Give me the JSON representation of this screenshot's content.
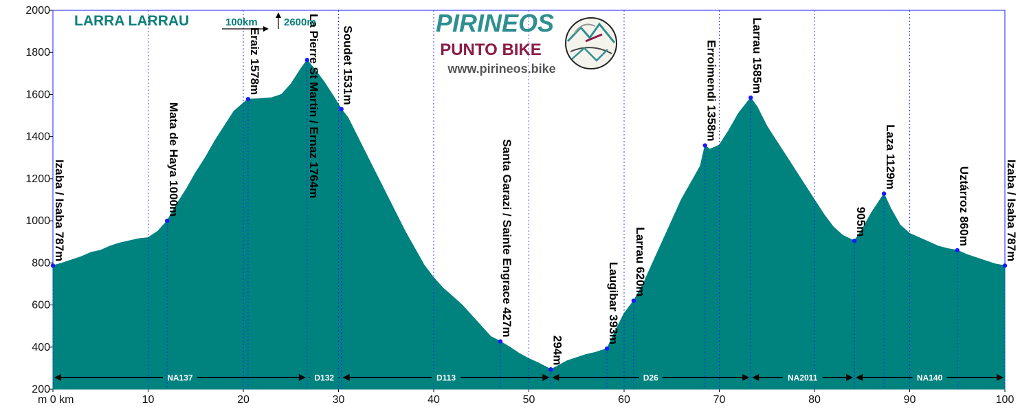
{
  "title": "LARRA LARRAU",
  "scale": {
    "horizontal": "100km",
    "vertical": "2600m"
  },
  "branding": {
    "line1": "PIRINEOS",
    "line2": "PUNTO BIKE",
    "url": "www.pirineos.bike"
  },
  "colors": {
    "fill": "#00827f",
    "title": "#0b7f7a",
    "brand_teal": "#2f8f91",
    "brand_maroon": "#8b1c46",
    "marker": "#1a1aff",
    "frame": "#1a1aff"
  },
  "chart_data": {
    "type": "area",
    "xlabel": "m 0 km",
    "xlim": [
      0,
      100
    ],
    "ylim": [
      200,
      2000
    ],
    "x_ticks": [
      0,
      10,
      20,
      30,
      40,
      50,
      60,
      70,
      80,
      90,
      100
    ],
    "x_tick_labels": [
      "m 0 km",
      "10",
      "20",
      "30",
      "40",
      "50",
      "60",
      "70",
      "80",
      "90",
      "100"
    ],
    "y_ticks": [
      200,
      400,
      600,
      800,
      1000,
      1200,
      1400,
      1600,
      1800,
      2000
    ],
    "y_tick_labels": [
      "200",
      "400",
      "600",
      "800",
      "1000",
      "1200",
      "1400",
      "1600",
      "1800",
      "2000"
    ],
    "profile": [
      [
        0,
        787
      ],
      [
        1,
        800
      ],
      [
        2,
        815
      ],
      [
        3,
        830
      ],
      [
        4,
        850
      ],
      [
        5,
        860
      ],
      [
        6,
        880
      ],
      [
        7,
        895
      ],
      [
        8,
        905
      ],
      [
        9,
        915
      ],
      [
        10,
        920
      ],
      [
        11,
        950
      ],
      [
        12,
        1000
      ],
      [
        13,
        1080
      ],
      [
        14,
        1150
      ],
      [
        15,
        1230
      ],
      [
        16,
        1300
      ],
      [
        17,
        1380
      ],
      [
        18,
        1450
      ],
      [
        19,
        1520
      ],
      [
        20,
        1560
      ],
      [
        20.5,
        1578
      ],
      [
        21.5,
        1580
      ],
      [
        23,
        1585
      ],
      [
        24,
        1600
      ],
      [
        25,
        1650
      ],
      [
        26,
        1720
      ],
      [
        26.7,
        1764
      ],
      [
        27.5,
        1720
      ],
      [
        28.5,
        1660
      ],
      [
        29.5,
        1590
      ],
      [
        30.3,
        1531
      ],
      [
        31,
        1490
      ],
      [
        32,
        1400
      ],
      [
        33,
        1310
      ],
      [
        34,
        1220
      ],
      [
        35,
        1130
      ],
      [
        36,
        1040
      ],
      [
        37,
        950
      ],
      [
        38,
        870
      ],
      [
        39,
        790
      ],
      [
        40,
        730
      ],
      [
        41,
        680
      ],
      [
        42,
        640
      ],
      [
        43,
        600
      ],
      [
        44,
        550
      ],
      [
        45,
        500
      ],
      [
        46,
        450
      ],
      [
        47,
        427
      ],
      [
        48,
        400
      ],
      [
        49,
        370
      ],
      [
        50,
        345
      ],
      [
        51,
        325
      ],
      [
        52.3,
        294
      ],
      [
        53,
        310
      ],
      [
        54,
        335
      ],
      [
        55,
        350
      ],
      [
        56,
        365
      ],
      [
        57,
        375
      ],
      [
        58.2,
        393
      ],
      [
        59,
        470
      ],
      [
        60,
        560
      ],
      [
        61,
        620
      ],
      [
        62,
        700
      ],
      [
        63,
        800
      ],
      [
        64,
        900
      ],
      [
        65,
        1000
      ],
      [
        66,
        1100
      ],
      [
        67,
        1180
      ],
      [
        68,
        1260
      ],
      [
        68.5,
        1358
      ],
      [
        69,
        1340
      ],
      [
        70,
        1360
      ],
      [
        71,
        1430
      ],
      [
        72,
        1510
      ],
      [
        73.3,
        1585
      ],
      [
        74,
        1540
      ],
      [
        75,
        1450
      ],
      [
        76,
        1380
      ],
      [
        77,
        1310
      ],
      [
        78,
        1240
      ],
      [
        79,
        1170
      ],
      [
        80,
        1100
      ],
      [
        81,
        1030
      ],
      [
        82,
        970
      ],
      [
        83,
        930
      ],
      [
        84.2,
        905
      ],
      [
        85,
        960
      ],
      [
        86,
        1040
      ],
      [
        87.3,
        1129
      ],
      [
        88,
        1060
      ],
      [
        89,
        980
      ],
      [
        90,
        940
      ],
      [
        91,
        920
      ],
      [
        92,
        900
      ],
      [
        93,
        880
      ],
      [
        94,
        868
      ],
      [
        95,
        860
      ],
      [
        96,
        840
      ],
      [
        97,
        825
      ],
      [
        98,
        810
      ],
      [
        99,
        795
      ],
      [
        100,
        787
      ]
    ],
    "waypoints": [
      {
        "label": "Izaba / Isaba 787m",
        "x": 0,
        "y": 787
      },
      {
        "label": "Mata de Haya 1000m",
        "x": 12,
        "y": 1000
      },
      {
        "label": "Eraiz 1578m",
        "x": 20.5,
        "y": 1578
      },
      {
        "label": "La Pierre St Martin / Ernaz 1764m",
        "x": 26.7,
        "y": 1764
      },
      {
        "label": "Soudet 1531m",
        "x": 30.3,
        "y": 1531
      },
      {
        "label": "Santa Garazi / Sainte Engrace 427m",
        "x": 47,
        "y": 427
      },
      {
        "label": "294m",
        "x": 52.3,
        "y": 294
      },
      {
        "label": "Laugibar 393m",
        "x": 58.2,
        "y": 393
      },
      {
        "label": "Larrau 620m",
        "x": 61,
        "y": 620
      },
      {
        "label": "Erroimendi 1358m",
        "x": 68.5,
        "y": 1358
      },
      {
        "label": "Larrau 1585m",
        "x": 73.3,
        "y": 1585
      },
      {
        "label": "905m",
        "x": 84.2,
        "y": 905
      },
      {
        "label": "Laza 1129m",
        "x": 87.3,
        "y": 1129
      },
      {
        "label": "Uztárroz 860m",
        "x": 95,
        "y": 860
      },
      {
        "label": "Izaba / Isaba 787m",
        "x": 100,
        "y": 787
      }
    ],
    "segments": [
      {
        "label": "NA137",
        "from": 0,
        "to": 26.7
      },
      {
        "label": "D132",
        "from": 26.7,
        "to": 30.3
      },
      {
        "label": "D113",
        "from": 30.3,
        "to": 52.3
      },
      {
        "label": "D26",
        "from": 52.3,
        "to": 73.3
      },
      {
        "label": "NA2011",
        "from": 73.3,
        "to": 84.2
      },
      {
        "label": "NA140",
        "from": 84.2,
        "to": 100
      }
    ]
  }
}
